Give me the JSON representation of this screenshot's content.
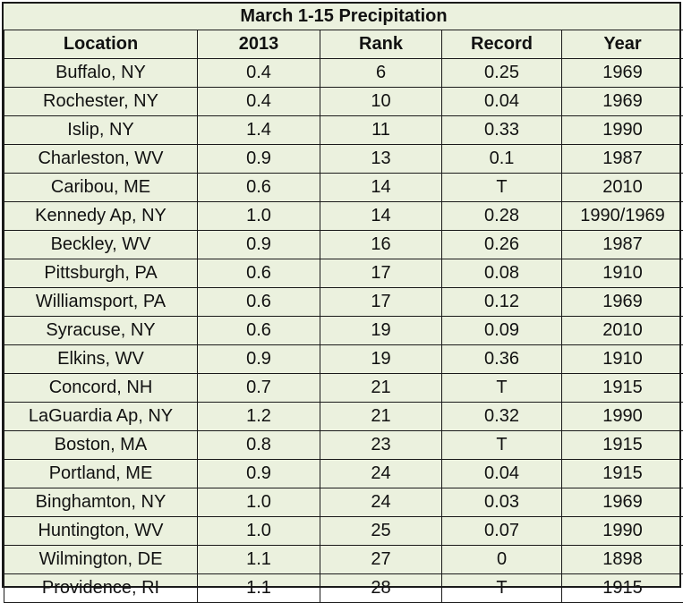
{
  "table": {
    "title": "March 1-15 Precipitation",
    "columns": [
      "Location",
      "2013",
      "Rank",
      "Record",
      "Year"
    ],
    "rows": [
      [
        "Buffalo, NY",
        "0.4",
        "6",
        "0.25",
        "1969"
      ],
      [
        "Rochester, NY",
        "0.4",
        "10",
        "0.04",
        "1969"
      ],
      [
        "Islip, NY",
        "1.4",
        "11",
        "0.33",
        "1990"
      ],
      [
        "Charleston, WV",
        "0.9",
        "13",
        "0.1",
        "1987"
      ],
      [
        "Caribou, ME",
        "0.6",
        "14",
        "T",
        "2010"
      ],
      [
        "Kennedy Ap, NY",
        "1.0",
        "14",
        "0.28",
        "1990/1969"
      ],
      [
        "Beckley, WV",
        "0.9",
        "16",
        "0.26",
        "1987"
      ],
      [
        "Pittsburgh, PA",
        "0.6",
        "17",
        "0.08",
        "1910"
      ],
      [
        "Williamsport, PA",
        "0.6",
        "17",
        "0.12",
        "1969"
      ],
      [
        "Syracuse, NY",
        "0.6",
        "19",
        "0.09",
        "2010"
      ],
      [
        "Elkins, WV",
        "0.9",
        "19",
        "0.36",
        "1910"
      ],
      [
        "Concord, NH",
        "0.7",
        "21",
        "T",
        "1915"
      ],
      [
        "LaGuardia Ap, NY",
        "1.2",
        "21",
        "0.32",
        "1990"
      ],
      [
        "Boston, MA",
        "0.8",
        "23",
        "T",
        "1915"
      ],
      [
        "Portland, ME",
        "0.9",
        "24",
        "0.04",
        "1915"
      ],
      [
        "Binghamton, NY",
        "1.0",
        "24",
        "0.03",
        "1969"
      ],
      [
        "Huntington, WV",
        "1.0",
        "25",
        "0.07",
        "1990"
      ],
      [
        "Wilmington, DE",
        "1.1",
        "27",
        "0",
        "1898"
      ],
      [
        "Providence, RI",
        "1.1",
        "28",
        "T",
        "1915"
      ]
    ]
  },
  "colors": {
    "background": "#ebf1de",
    "border": "#1a1a1a",
    "text": "#111111"
  }
}
